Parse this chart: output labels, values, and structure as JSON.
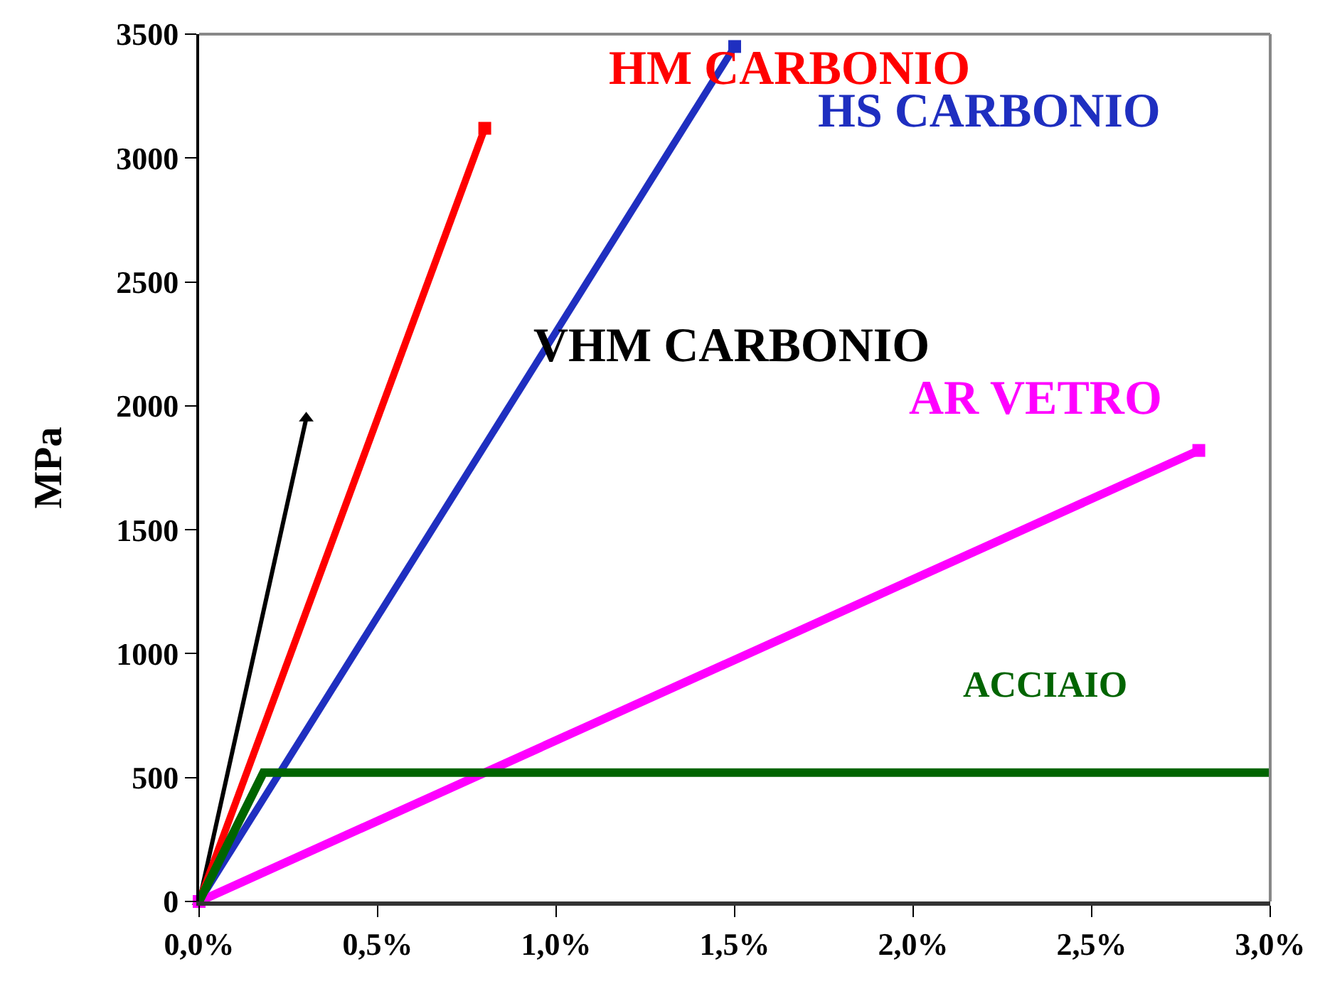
{
  "chart_data": {
    "type": "line",
    "ylabel": "MPa",
    "legend": false,
    "grid": false,
    "xlim": [
      0,
      3
    ],
    "xticks": [
      {
        "value": 0,
        "label": "0,0%"
      },
      {
        "value": 0.5,
        "label": "0,5%"
      },
      {
        "value": 1,
        "label": "1,0%"
      },
      {
        "value": 1.5,
        "label": "1,5%"
      },
      {
        "value": 2,
        "label": "2,0%"
      },
      {
        "value": 2.5,
        "label": "2,5%"
      },
      {
        "value": 3,
        "label": "3,0%"
      }
    ],
    "ylim": [
      0,
      3500
    ],
    "yticks": [
      0,
      500,
      1000,
      1500,
      2000,
      2500,
      3000,
      3500
    ],
    "series": [
      {
        "name": "VHM CARBONIO",
        "color": "#000000",
        "x": [
          0,
          0.3
        ],
        "values": [
          0,
          1950
        ],
        "marker": "triangle"
      },
      {
        "name": "HM CARBONIO",
        "color": "#ff0000",
        "x": [
          0,
          0.8
        ],
        "values": [
          0,
          3120
        ],
        "marker": "square"
      },
      {
        "name": "HS CARBONIO",
        "color": "#1f2fc0",
        "x": [
          0,
          1.5
        ],
        "values": [
          0,
          3450
        ],
        "marker": "square"
      },
      {
        "name": "AR VETRO",
        "color": "#ff00ff",
        "x": [
          0,
          2.8
        ],
        "values": [
          0,
          1820
        ],
        "marker": "square"
      },
      {
        "name": "ACCIAIO",
        "color": "#006400",
        "x": [
          0,
          0.18,
          3
        ],
        "values": [
          0,
          520,
          520
        ],
        "marker": "none"
      }
    ]
  }
}
